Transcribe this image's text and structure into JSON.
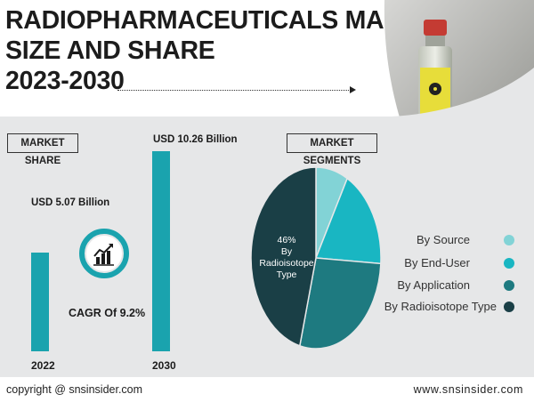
{
  "header": {
    "title_lines": [
      "RADIOPHARMACEUTICALS MARKET",
      "SIZE AND SHARE",
      "2023-2030"
    ]
  },
  "market_share": {
    "badge": "MARKET SHARE",
    "cagr": "CAGR Of 9.2%",
    "icon": "rising-bar-chart-icon"
  },
  "segments": {
    "badge": "MARKET SEGMENTS",
    "pie_label": [
      "46%",
      "By",
      "Radioisotope",
      "Type"
    ]
  },
  "legend": [
    {
      "label": "By Source",
      "color": "#82d3d6"
    },
    {
      "label": "By End-User",
      "color": "#19b6c2"
    },
    {
      "label": "By Application",
      "color": "#1e7a80"
    },
    {
      "label": "By Radioisotope Type",
      "color": "#1a3f46"
    }
  ],
  "footer": {
    "copyright": "copyright @ snsinsider.com",
    "website": "www.snsinsider.com"
  },
  "colors": {
    "accent": "#1aa3ae",
    "panel": "#e6e7e8",
    "dark": "#1a3f46"
  },
  "chart_data": [
    {
      "type": "bar",
      "categories": [
        "2022",
        "2030"
      ],
      "values": [
        5.07,
        10.26
      ],
      "value_labels": [
        "USD 5.07 Billion",
        "USD 10.26 Billion"
      ],
      "unit": "USD Billion",
      "ylim": [
        0,
        10.26
      ]
    },
    {
      "type": "pie",
      "labels": [
        "By Source",
        "By End-User",
        "By Application",
        "By Radioisotope Type"
      ],
      "values": [
        8,
        18,
        28,
        46
      ],
      "data_labels": [
        "",
        "",
        "",
        "46%"
      ],
      "legend_position": "right"
    }
  ]
}
